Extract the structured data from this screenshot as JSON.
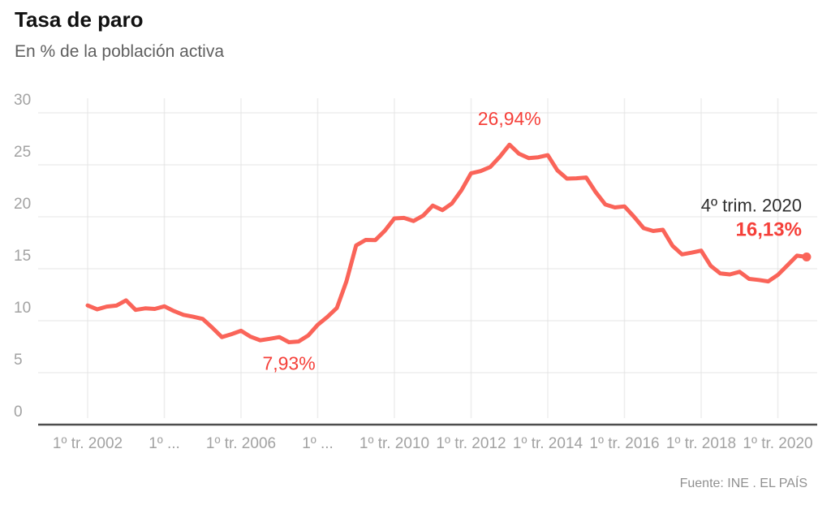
{
  "header": {
    "title": "Tasa de paro",
    "subtitle": "En % de la población activa"
  },
  "footer": {
    "source": "Fuente: INE . EL PAÍS"
  },
  "colors": {
    "line": "#fa6459",
    "annotation_red": "#f5403a",
    "annotation_dark": "#2e2e2e",
    "axis_text": "#a2a2a2",
    "grid_horizontal": "#e4e4e4",
    "grid_vertical": "#ededed",
    "axis_line": "#4d4d4d"
  },
  "chart_data": {
    "type": "line",
    "title": "Tasa de paro",
    "subtitle": "En % de la población activa",
    "frequency": "quarterly",
    "x_start": "1º tr. 2002",
    "x_end": "4º trim. 2020",
    "ylim": [
      0,
      30
    ],
    "grid": true,
    "legend": false,
    "y_ticks": [
      30,
      25,
      20,
      15,
      10,
      5,
      0
    ],
    "x_ticks": [
      {
        "label": "1º tr. 2002",
        "index": 0
      },
      {
        "label": "1º ...",
        "index": 8
      },
      {
        "label": "1º tr. 2006",
        "index": 16
      },
      {
        "label": "1º ...",
        "index": 24
      },
      {
        "label": "1º tr. 2010",
        "index": 32
      },
      {
        "label": "1º tr. 2012",
        "index": 40
      },
      {
        "label": "1º tr. 2014",
        "index": 48
      },
      {
        "label": "1º tr. 2016",
        "index": 56
      },
      {
        "label": "1º tr. 2018",
        "index": 64
      },
      {
        "label": "1º tr. 2020",
        "index": 72
      }
    ],
    "series": [
      {
        "name": "Tasa de paro",
        "color": "#fa6459",
        "values": [
          11.47,
          11.09,
          11.36,
          11.45,
          11.96,
          11.04,
          11.19,
          11.13,
          11.38,
          10.93,
          10.56,
          10.38,
          10.17,
          9.33,
          8.42,
          8.7,
          9.03,
          8.46,
          8.12,
          8.26,
          8.42,
          7.93,
          8.0,
          8.57,
          9.6,
          10.36,
          11.23,
          13.79,
          17.24,
          17.77,
          17.75,
          18.66,
          19.84,
          19.89,
          19.59,
          20.11,
          21.08,
          20.64,
          21.28,
          22.56,
          24.19,
          24.4,
          24.79,
          25.77,
          26.94,
          26.06,
          25.65,
          25.73,
          25.93,
          24.47,
          23.67,
          23.7,
          23.78,
          22.37,
          21.18,
          20.9,
          21.0,
          20.0,
          18.91,
          18.63,
          18.75,
          17.22,
          16.38,
          16.55,
          16.74,
          15.28,
          14.55,
          14.45,
          14.7,
          14.02,
          13.92,
          13.78,
          14.41,
          15.33,
          16.26,
          16.13
        ]
      }
    ],
    "annotations": {
      "peak": {
        "label": "26,94%",
        "index": 44,
        "value": 26.94
      },
      "trough": {
        "label": "7,93%",
        "index": 21,
        "value": 7.93
      },
      "last_period": {
        "label": "4º trim. 2020"
      },
      "last_value": {
        "label": "16,13%",
        "index": 75,
        "value": 16.13
      }
    },
    "end_dot": true
  }
}
